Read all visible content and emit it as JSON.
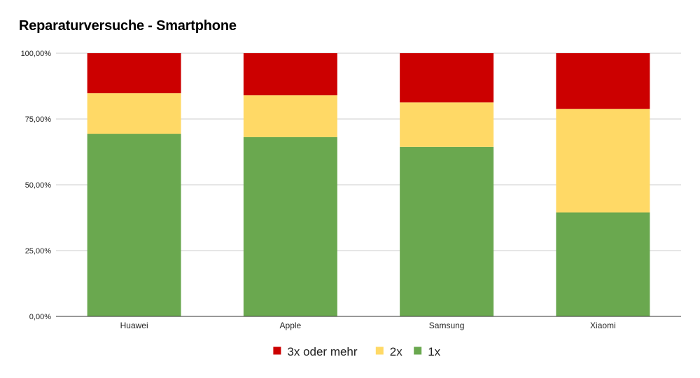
{
  "chart_data": {
    "type": "bar",
    "stacked": true,
    "title": "Reparaturversuche - Smartphone",
    "categories": [
      "Huawei",
      "Apple",
      "Samsung",
      "Xiaomi"
    ],
    "series": [
      {
        "name": "1x",
        "color": "#6aa84f",
        "values": [
          69.4,
          68.1,
          64.4,
          39.5
        ]
      },
      {
        "name": "2x",
        "color": "#ffd966",
        "values": [
          15.4,
          15.9,
          16.9,
          39.3
        ]
      },
      {
        "name": "3x oder mehr",
        "color": "#cc0000",
        "values": [
          15.2,
          16.0,
          18.7,
          21.2
        ]
      }
    ],
    "ylim": [
      0,
      100
    ],
    "yticks": [
      0,
      25,
      50,
      75,
      100
    ],
    "ytick_labels": [
      "0,00%",
      "25,00%",
      "50,00%",
      "75,00%",
      "100,00%"
    ],
    "legend_order": [
      "3x oder mehr",
      "2x",
      "1x"
    ],
    "legend_position": "bottom",
    "grid": true
  }
}
